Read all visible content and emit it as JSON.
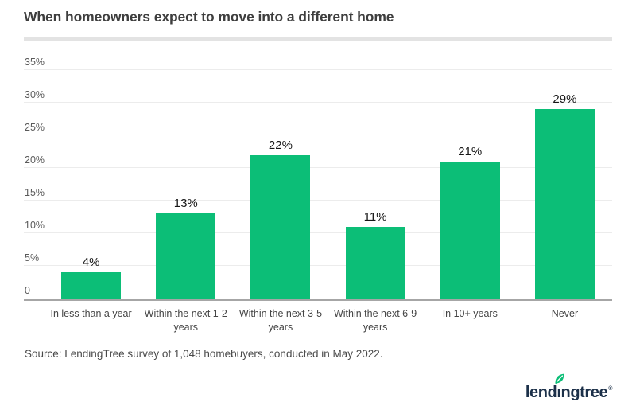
{
  "title": "When homeowners expect to move into a different home",
  "source_note": "Source: LendingTree survey of 1,048 homebuyers, conducted in May 2022.",
  "logo": {
    "part_before": "lend",
    "dotless_i": "ı",
    "part_after": "ngtree",
    "registered": "®"
  },
  "colors": {
    "bar": "#0CBE77",
    "gridline": "#ECECEC",
    "axis_line": "#A6A6A6",
    "title_divider": "#E3E3E3",
    "title_text": "#3E3E3E",
    "tick_text": "#5A5A5A",
    "category_text": "#454545",
    "value_text": "#161616",
    "logo_navy": "#1C3049",
    "logo_green": "#0CBE77",
    "background": "#FFFFFF"
  },
  "chart_data": {
    "type": "bar",
    "title": "When homeowners expect to move into a different home",
    "categories": [
      "In less than a year",
      "Within the next 1-2 years",
      "Within the next 3-5 years",
      "Within the next 6-9 years",
      "In 10+ years",
      "Never"
    ],
    "category_display": [
      "In less than a year",
      "Within the next 1-2\nyears",
      "Within the next 3-5\nyears",
      "Within the next 6-9\nyears",
      "In 10+ years",
      "Never"
    ],
    "values": [
      4,
      13,
      22,
      11,
      21,
      29
    ],
    "value_labels": [
      "4%",
      "13%",
      "22%",
      "11%",
      "21%",
      "29%"
    ],
    "xlabel": "",
    "ylabel": "",
    "ylim": [
      0,
      35
    ],
    "y_ticks": [
      {
        "value": 0,
        "label": "0"
      },
      {
        "value": 5,
        "label": "5%"
      },
      {
        "value": 10,
        "label": "10%"
      },
      {
        "value": 15,
        "label": "15%"
      },
      {
        "value": 20,
        "label": "20%"
      },
      {
        "value": 25,
        "label": "25%"
      },
      {
        "value": 30,
        "label": "30%"
      },
      {
        "value": 35,
        "label": "35%"
      }
    ],
    "grid": true,
    "legend": false,
    "bar_color": "#0CBE77"
  }
}
